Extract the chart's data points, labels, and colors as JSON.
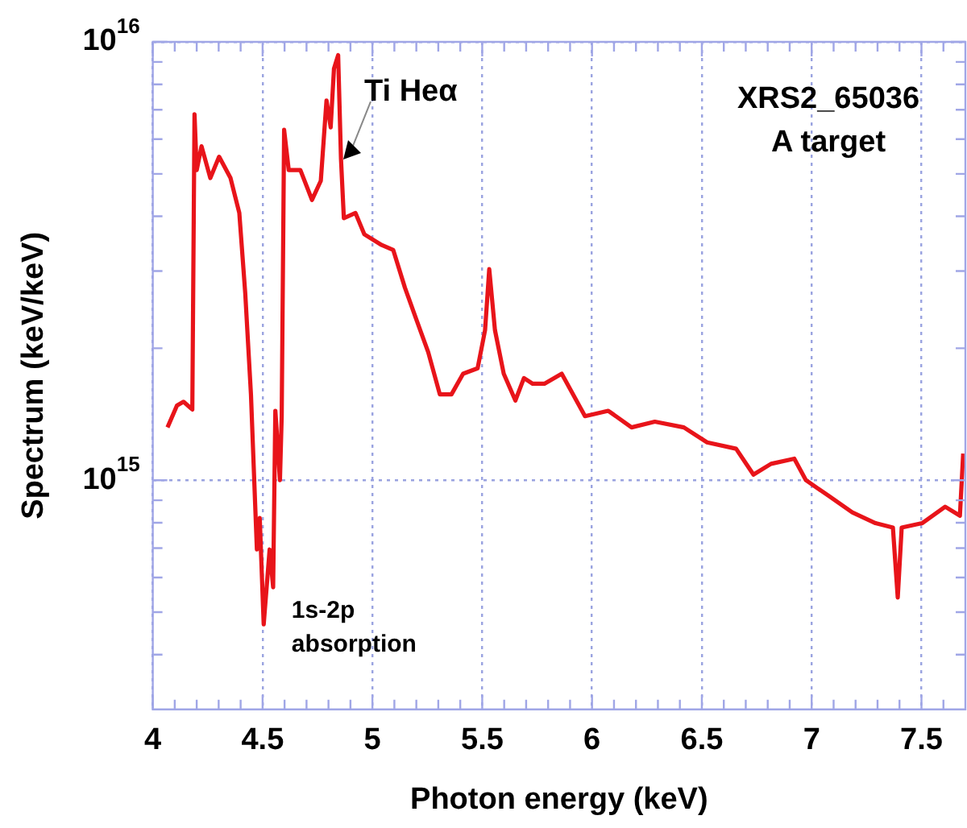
{
  "chart_data": {
    "type": "line",
    "xlabel": "Photon energy (keV)",
    "ylabel": "Spectrum (keV/keV)",
    "log": "y",
    "grid": true,
    "marker": "none",
    "line_style": "solid",
    "xlim": [
      4,
      7.7
    ],
    "ylim": [
      300000000000000.0,
      1e+16
    ],
    "xticks": [
      4,
      {
        "value": 4.1,
        "label": null
      },
      {
        "value": 4.2,
        "label": null
      },
      {
        "value": 4.3,
        "label": null
      },
      {
        "value": 4.4,
        "label": null
      },
      4.5,
      {
        "value": 4.6,
        "label": null
      },
      {
        "value": 4.7,
        "label": null
      },
      {
        "value": 4.8,
        "label": null
      },
      {
        "value": 4.9,
        "label": null
      },
      5,
      {
        "value": 5.1,
        "label": null
      },
      {
        "value": 5.2,
        "label": null
      },
      {
        "value": 5.3,
        "label": null
      },
      {
        "value": 5.4,
        "label": null
      },
      5.5,
      {
        "value": 5.6,
        "label": null
      },
      {
        "value": 5.7,
        "label": null
      },
      {
        "value": 5.8,
        "label": null
      },
      {
        "value": 5.9,
        "label": null
      },
      6,
      {
        "value": 6.1,
        "label": null
      },
      {
        "value": 6.2,
        "label": null
      },
      {
        "value": 6.3,
        "label": null
      },
      {
        "value": 6.4,
        "label": null
      },
      6.5,
      {
        "value": 6.6,
        "label": null
      },
      {
        "value": 6.7,
        "label": null
      },
      {
        "value": 6.8,
        "label": null
      },
      {
        "value": 6.9,
        "label": null
      },
      7,
      {
        "value": 7.1,
        "label": null
      },
      {
        "value": 7.2,
        "label": null
      },
      {
        "value": 7.3,
        "label": null
      },
      {
        "value": 7.4,
        "label": null
      },
      7.5,
      {
        "value": 7.6,
        "label": null
      }
    ],
    "yticks": [
      {
        "value": 400000000000000.0,
        "label": null
      },
      {
        "value": 500000000000000.0,
        "label": null
      },
      {
        "value": 600000000000000.0,
        "label": null
      },
      {
        "value": 700000000000000.0,
        "label": null
      },
      {
        "value": 800000000000000.0,
        "label": null
      },
      {
        "value": 900000000000000.0,
        "label": null
      },
      {
        "value": 1000000000000000.0,
        "label": "10$^{15}$"
      },
      {
        "value": 2000000000000000.0,
        "label": null
      },
      {
        "value": 3000000000000000.0,
        "label": null
      },
      {
        "value": 4000000000000000.0,
        "label": null
      },
      {
        "value": 5000000000000000.0,
        "label": null
      },
      {
        "value": 6000000000000000.0,
        "label": null
      },
      {
        "value": 7000000000000000.0,
        "label": null
      },
      {
        "value": 8000000000000000.0,
        "label": null
      },
      {
        "value": 9000000000000000.0,
        "label": null
      },
      {
        "value": 1e+16,
        "label": "10$^{16}$"
      }
    ],
    "annotations": [
      "XRS2_65036",
      "A target",
      {
        "text": "Ti Heα",
        "x": 4.86,
        "y": 5300000000000000.0
      },
      {
        "text": "1s-2p absorption",
        "x": 4.5,
        "y": 470000000000000.0
      }
    ],
    "series": [
      {
        "color": "#e8141a",
        "x": [
          4.067,
          4.11,
          4.14,
          4.18,
          4.19,
          4.2,
          4.222,
          4.262,
          4.302,
          4.354,
          4.394,
          4.421,
          4.447,
          4.474,
          4.487,
          4.505,
          4.532,
          4.548,
          4.558,
          4.579,
          4.587,
          4.598,
          4.619,
          4.672,
          4.725,
          4.765,
          4.791,
          4.81,
          4.825,
          4.844,
          4.857,
          4.87,
          4.923,
          4.963,
          5.042,
          5.095,
          5.148,
          5.201,
          5.254,
          5.307,
          5.36,
          5.413,
          5.479,
          5.513,
          5.532,
          5.558,
          5.598,
          5.651,
          5.69,
          5.73,
          5.783,
          5.862,
          5.968,
          6.074,
          6.18,
          6.286,
          6.418,
          6.524,
          6.656,
          6.735,
          6.815,
          6.921,
          6.974,
          7.079,
          7.185,
          7.291,
          7.37,
          7.392,
          7.41,
          7.503,
          7.608,
          7.675,
          7.69
        ],
        "values": [
          1320000000000000.0,
          1480000000000000.0,
          1510000000000000.0,
          1450000000000000.0,
          6840000000000000.0,
          5100000000000000.0,
          5780000000000000.0,
          4890000000000000.0,
          5470000000000000.0,
          4890000000000000.0,
          4070000000000000.0,
          2670000000000000.0,
          1570000000000000.0,
          695000000000000.0,
          820000000000000.0,
          469000000000000.0,
          695000000000000.0,
          570000000000000.0,
          1440000000000000.0,
          1000000000000000.0,
          1400000000000000.0,
          6300000000000000.0,
          5100000000000000.0,
          5100000000000000.0,
          4360000000000000.0,
          4820000000000000.0,
          7350000000000000.0,
          6380000000000000.0,
          8690000000000000.0,
          9330000000000000.0,
          5400000000000000.0,
          3960000000000000.0,
          4070000000000000.0,
          3640000000000000.0,
          3440000000000000.0,
          3350000000000000.0,
          2750000000000000.0,
          2320000000000000.0,
          1960000000000000.0,
          1570000000000000.0,
          1570000000000000.0,
          1750000000000000.0,
          1800000000000000.0,
          2200000000000000.0,
          3030000000000000.0,
          2200000000000000.0,
          1750000000000000.0,
          1520000000000000.0,
          1710000000000000.0,
          1660000000000000.0,
          1660000000000000.0,
          1750000000000000.0,
          1400000000000000.0,
          1440000000000000.0,
          1320000000000000.0,
          1360000000000000.0,
          1320000000000000.0,
          1220000000000000.0,
          1180000000000000.0,
          1030000000000000.0,
          1090000000000000.0,
          1120000000000000.0,
          1000000000000000.0,
          920000000000000.0,
          845000000000000.0,
          798000000000000.0,
          780000000000000.0,
          540000000000000.0,
          780000000000000.0,
          798000000000000.0,
          870000000000000.0,
          830000000000000.0,
          1150000000000000.0
        ]
      }
    ]
  }
}
